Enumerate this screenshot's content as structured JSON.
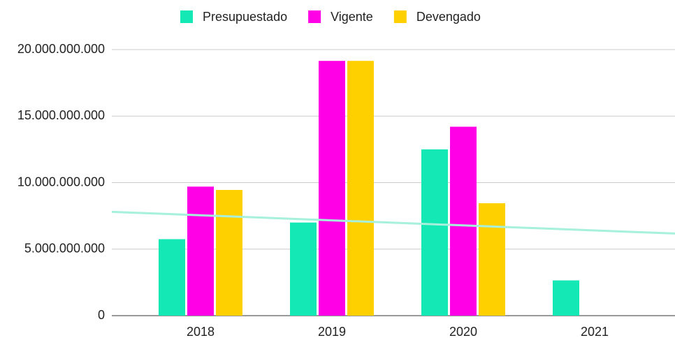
{
  "chart_data": {
    "type": "bar",
    "categories": [
      "2018",
      "2019",
      "2020",
      "2021"
    ],
    "series": [
      {
        "name": "Presupuestado",
        "color": "#14e8b5",
        "values": [
          5750000000,
          7000000000,
          12500000000,
          2650000000
        ]
      },
      {
        "name": "Vigente",
        "color": "#ff00e6",
        "values": [
          9700000000,
          19150000000,
          14200000000,
          null
        ]
      },
      {
        "name": "Devengado",
        "color": "#ffd000",
        "values": [
          9450000000,
          19150000000,
          8450000000,
          null
        ]
      }
    ],
    "trendline": {
      "series": 0,
      "color": "#a6f0dc"
    },
    "ylim": [
      0,
      20000000000
    ],
    "yticks": [
      0,
      {
        "value": 5000000000,
        "label": "5.000.000.000"
      },
      {
        "value": 10000000000,
        "label": "10.000.000.000"
      },
      {
        "value": 15000000000,
        "label": "15.000.000.000"
      },
      {
        "value": 20000000000,
        "label": "20.000.000.000"
      }
    ],
    "grid": true,
    "legend": "top"
  }
}
